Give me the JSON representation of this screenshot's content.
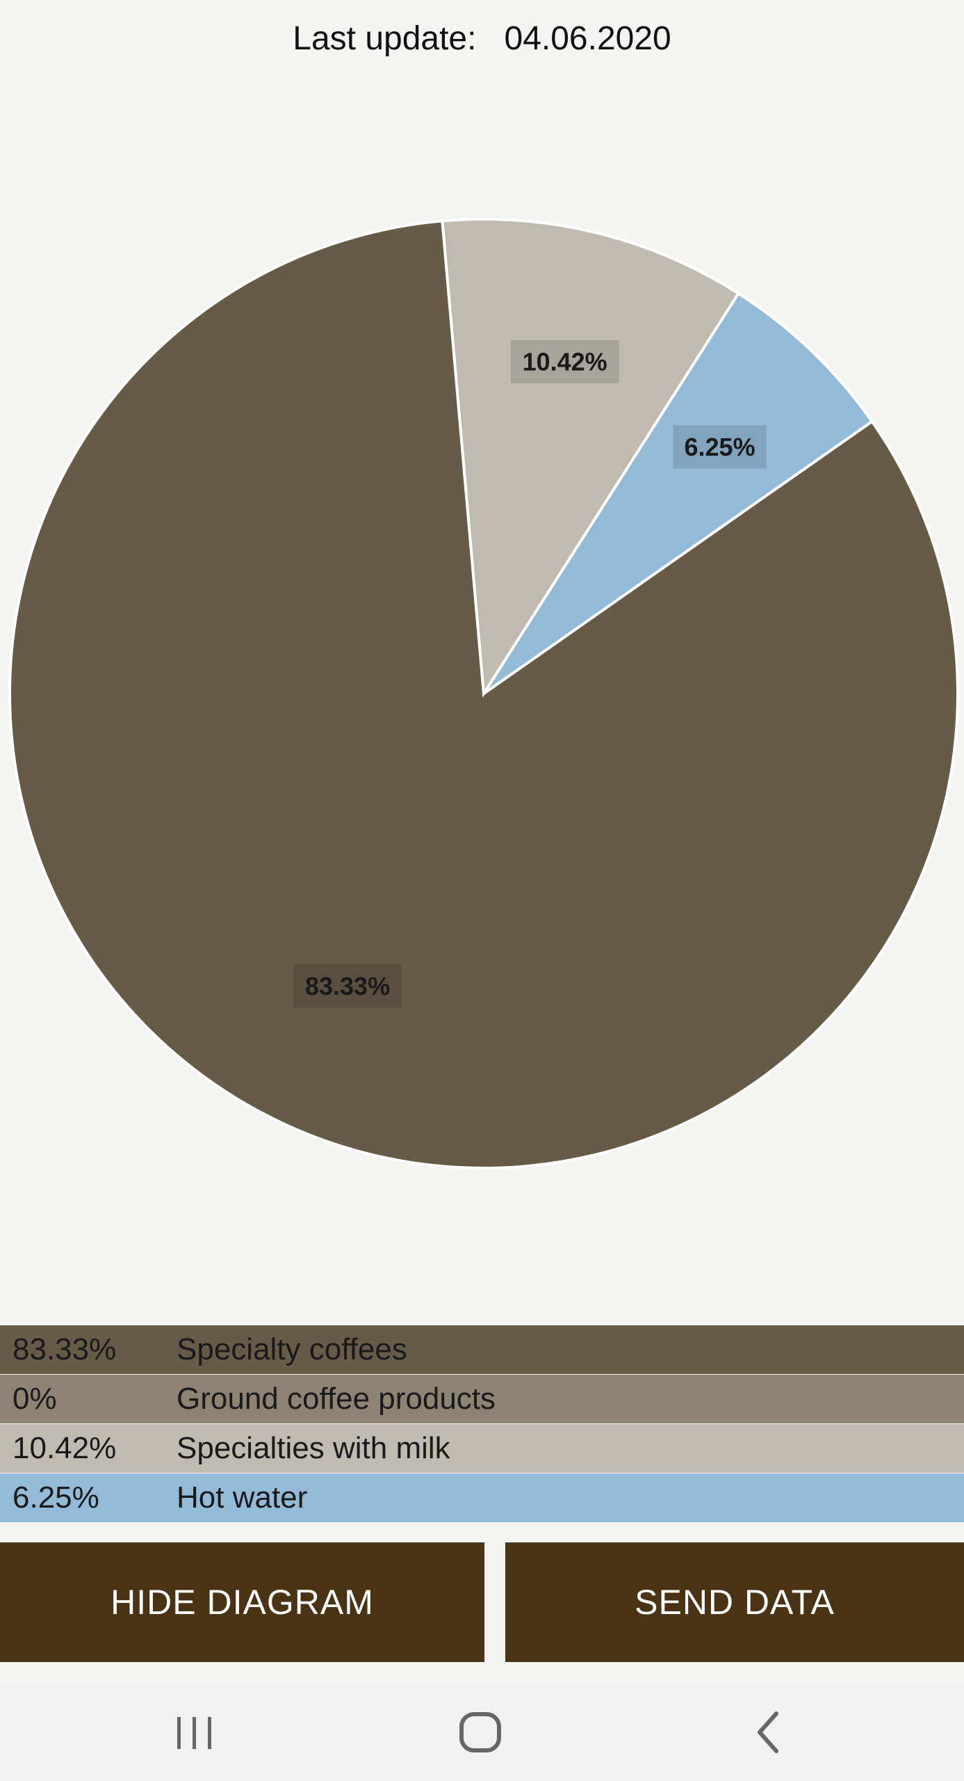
{
  "header": {
    "last_update_label": "Last update:",
    "last_update_value": "04.06.2020"
  },
  "chart_data": {
    "type": "pie",
    "slices": [
      {
        "label": "Specialty coffees",
        "value": 83.33,
        "display": "83.33%",
        "color": "#655b47"
      },
      {
        "label": "Ground coffee products",
        "value": 0,
        "display": "0%",
        "color": "#8c8373"
      },
      {
        "label": "Specialties with milk",
        "value": 10.42,
        "display": "10.42%",
        "color": "#bfbbb0"
      },
      {
        "label": "Hot water",
        "value": 6.25,
        "display": "6.25%",
        "color": "#93bad6"
      }
    ]
  },
  "legend": [
    {
      "pct": "83.33%",
      "label": "Specialty coffees",
      "color": "#655b47"
    },
    {
      "pct": "0%",
      "label": "Ground coffee products",
      "color": "#8c8373"
    },
    {
      "pct": "10.42%",
      "label": "Specialties with milk",
      "color": "#bfbbb0"
    },
    {
      "pct": "6.25%",
      "label": "Hot water",
      "color": "#93bad6"
    }
  ],
  "buttons": {
    "hide_diagram": "HIDE DIAGRAM",
    "send_data": "SEND DATA"
  },
  "colors": {
    "button_bg": "#4a3214",
    "button_text": "#ffffff",
    "background": "#f4f5f3"
  },
  "navbar": {
    "recents_icon": "recents-icon",
    "home_icon": "home-icon",
    "back_icon": "back-icon"
  }
}
